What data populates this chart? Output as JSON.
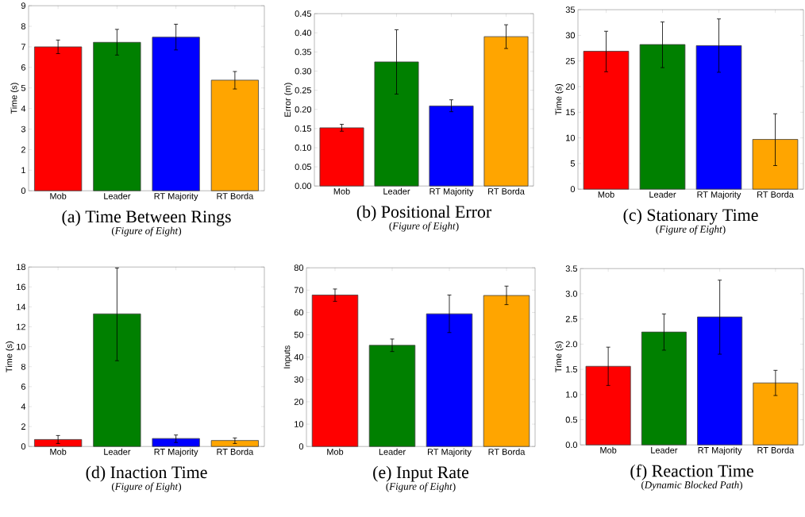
{
  "chart_data": [
    {
      "type": "bar",
      "title": "(a) Time Between Rings",
      "subtitle": "(*Figure of Eight*)",
      "ylabel": "Time (s)",
      "categories": [
        "Mob",
        "Leader",
        "RT Majority",
        "RT Borda"
      ],
      "values": [
        7.0,
        7.22,
        7.47,
        5.38
      ],
      "colors": [
        "#ff0000",
        "#008000",
        "#0000ff",
        "#ffa500"
      ],
      "errors": [
        [
          6.67,
          7.33
        ],
        [
          6.6,
          7.85
        ],
        [
          6.85,
          8.1
        ],
        [
          4.95,
          5.8
        ]
      ],
      "ylim": [
        0,
        9
      ],
      "yticks": [
        0,
        1,
        2,
        3,
        4,
        5,
        6,
        7,
        8,
        9
      ]
    },
    {
      "type": "bar",
      "title": "(b) Positional Error",
      "subtitle": "(*Figure of Eight*)",
      "ylabel": "Error (m)",
      "categories": [
        "Mob",
        "Leader",
        "RT Majority",
        "RT Borda"
      ],
      "values": [
        0.152,
        0.324,
        0.209,
        0.39
      ],
      "colors": [
        "#ff0000",
        "#008000",
        "#0000ff",
        "#ffa500"
      ],
      "errors": [
        [
          0.143,
          0.161
        ],
        [
          0.24,
          0.408
        ],
        [
          0.194,
          0.225
        ],
        [
          0.359,
          0.421
        ]
      ],
      "ylim": [
        0,
        0.45
      ],
      "yticks": [
        {
          "value": 0,
          "label": "0.00"
        },
        {
          "value": 0.05,
          "label": "0.05"
        },
        {
          "value": 0.1,
          "label": "0.10"
        },
        {
          "value": 0.15,
          "label": "0.15"
        },
        {
          "value": 0.2,
          "label": "0.20"
        },
        {
          "value": 0.25,
          "label": "0.25"
        },
        {
          "value": 0.3,
          "label": "0.30"
        },
        {
          "value": 0.35,
          "label": "0.35"
        },
        {
          "value": 0.4,
          "label": "0.40"
        },
        {
          "value": 0.45,
          "label": "0.45"
        }
      ]
    },
    {
      "type": "bar",
      "title": "(c) Stationary Time",
      "subtitle": "(*Figure of Eight*)",
      "ylabel": "Time (s)",
      "categories": [
        "Mob",
        "Leader",
        "RT Majority",
        "RT Borda"
      ],
      "values": [
        26.9,
        28.2,
        28.0,
        9.7
      ],
      "colors": [
        "#ff0000",
        "#008000",
        "#0000ff",
        "#ffa500"
      ],
      "errors": [
        [
          22.9,
          30.8
        ],
        [
          23.7,
          32.6
        ],
        [
          22.8,
          33.2
        ],
        [
          4.6,
          14.7
        ]
      ],
      "ylim": [
        0,
        35
      ],
      "yticks": [
        0,
        5,
        10,
        15,
        20,
        25,
        30,
        35
      ]
    },
    {
      "type": "bar",
      "title": "(d) Inaction Time",
      "subtitle": "(*Figure of Eight*)",
      "ylabel": "Time (s)",
      "categories": [
        "Mob",
        "Leader",
        "RT Majority",
        "RT Borda"
      ],
      "values": [
        0.7,
        13.3,
        0.8,
        0.6
      ],
      "colors": [
        "#ff0000",
        "#008000",
        "#0000ff",
        "#ffa500"
      ],
      "errors": [
        [
          0.3,
          1.1
        ],
        [
          8.6,
          17.9
        ],
        [
          0.4,
          1.15
        ],
        [
          0.3,
          0.85
        ]
      ],
      "ylim": [
        0,
        18
      ],
      "yticks": [
        0,
        2,
        4,
        6,
        8,
        10,
        12,
        14,
        16,
        18
      ]
    },
    {
      "type": "bar",
      "title": "(e) Input Rate",
      "subtitle": "(*Figure of Eight*)",
      "ylabel": "Inputs",
      "categories": [
        "Mob",
        "Leader",
        "RT Majority",
        "RT Borda"
      ],
      "values": [
        67.8,
        45.3,
        59.4,
        67.6
      ],
      "colors": [
        "#ff0000",
        "#008000",
        "#0000ff",
        "#ffa500"
      ],
      "errors": [
        [
          65.0,
          70.5
        ],
        [
          42.5,
          48.1
        ],
        [
          51.0,
          67.8
        ],
        [
          63.5,
          71.8
        ]
      ],
      "ylim": [
        0,
        80
      ],
      "yticks": [
        0,
        10,
        20,
        30,
        40,
        50,
        60,
        70,
        80
      ]
    },
    {
      "type": "bar",
      "title": "(f) Reaction Time",
      "subtitle": "(*Dynamic Blocked Path*)",
      "ylabel": "Time (s)",
      "categories": [
        "Mob",
        "Leader",
        "RT Majority",
        "RT Borda"
      ],
      "values": [
        1.56,
        2.24,
        2.54,
        1.23
      ],
      "colors": [
        "#ff0000",
        "#008000",
        "#0000ff",
        "#ffa500"
      ],
      "errors": [
        [
          1.18,
          1.94
        ],
        [
          1.88,
          2.6
        ],
        [
          1.8,
          3.27
        ],
        [
          0.98,
          1.48
        ]
      ],
      "ylim": [
        0,
        3.5
      ],
      "yticks": [
        {
          "value": 0,
          "label": "0.0"
        },
        {
          "value": 0.5,
          "label": "0.5"
        },
        {
          "value": 1,
          "label": "1.0"
        },
        {
          "value": 1.5,
          "label": "1.5"
        },
        {
          "value": 2,
          "label": "2.0"
        },
        {
          "value": 2.5,
          "label": "2.5"
        },
        {
          "value": 3,
          "label": "3.0"
        },
        {
          "value": 3.5,
          "label": "3.5"
        }
      ]
    }
  ]
}
